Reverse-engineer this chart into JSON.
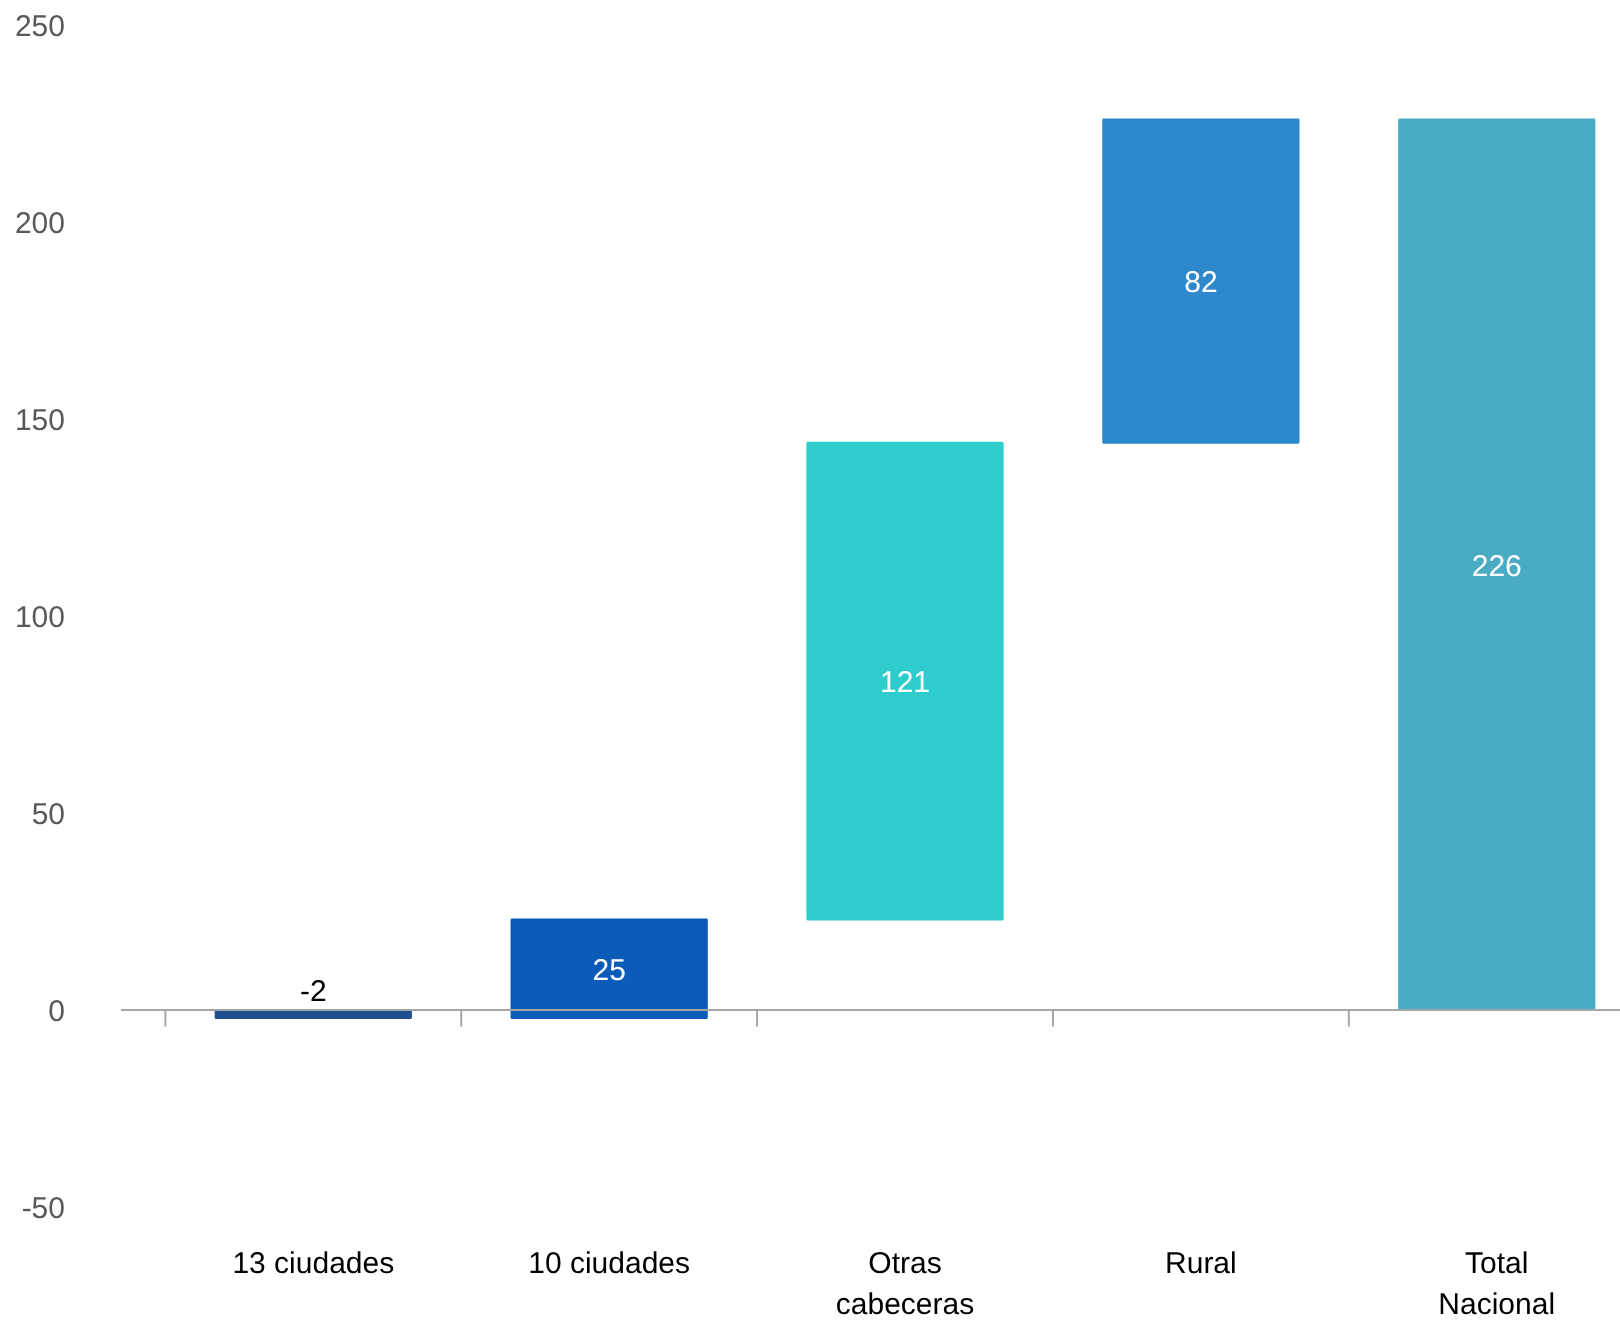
{
  "chart_data": {
    "type": "bar",
    "categories": [
      "13 ciudades",
      "10 ciudades",
      "Otras cabeceras",
      "Rural",
      "Total Nacional"
    ],
    "values": [
      -2,
      25,
      121,
      82,
      226
    ],
    "base": [
      0,
      -2,
      23,
      144,
      0
    ],
    "colors": [
      "#1d4f91",
      "#0b5cb8",
      "#2ecccc",
      "#2e88cc",
      "#4aabc5"
    ],
    "ylim": [
      -50,
      250
    ],
    "yticks": [
      -50,
      0,
      50,
      100,
      150,
      200,
      250
    ],
    "data_labels": true
  }
}
